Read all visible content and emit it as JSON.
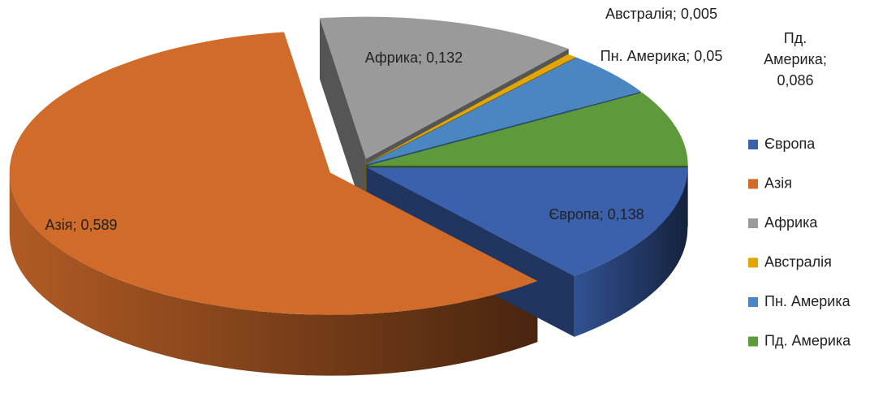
{
  "chart_data": {
    "type": "pie3d",
    "categories": [
      "Європа",
      "Азія",
      "Африка",
      "Австралія",
      "Пн. Америка",
      "Пд. Америка"
    ],
    "values": [
      0.138,
      0.589,
      0.132,
      0.005,
      0.05,
      0.086
    ],
    "value_labels": [
      "Європа; 0,138",
      "Азія; 0,589",
      "Африка; 0,132",
      "Австралія; 0,005",
      "Пн. Америка; 0,05",
      "Пд. Америка; 0,086"
    ],
    "colors": [
      "#3b61ad",
      "#d06b2a",
      "#9a9a9a",
      "#e3a600",
      "#4a87c2",
      "#5e9a3c"
    ],
    "legend": "right"
  }
}
